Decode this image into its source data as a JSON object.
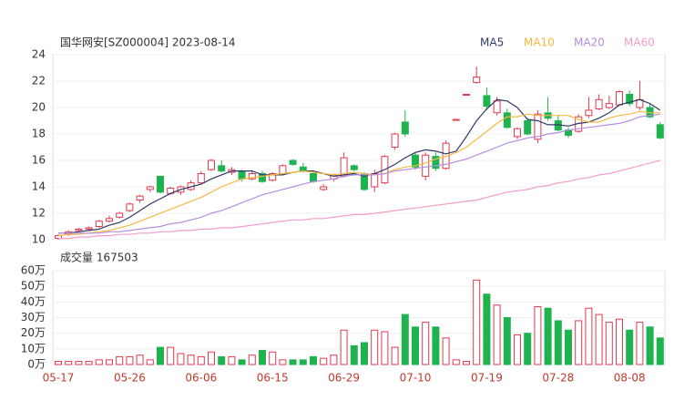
{
  "chart_data": {
    "type": "candlestick",
    "title": "国华网安[SZ000004] 2023-08-14",
    "categories": [
      "05-17",
      null,
      null,
      null,
      null,
      null,
      null,
      "05-26",
      null,
      null,
      null,
      null,
      null,
      null,
      "06-06",
      null,
      null,
      null,
      null,
      null,
      null,
      "06-15",
      null,
      null,
      null,
      null,
      null,
      null,
      "06-29",
      null,
      null,
      null,
      null,
      null,
      null,
      "07-10",
      null,
      null,
      null,
      null,
      null,
      null,
      "07-19",
      null,
      null,
      null,
      null,
      null,
      null,
      "07-28",
      null,
      null,
      null,
      null,
      null,
      null,
      "08-08",
      null,
      null,
      null
    ],
    "open": [
      10.1,
      10.4,
      10.7,
      10.8,
      11.0,
      11.4,
      11.7,
      12.2,
      13.0,
      13.8,
      14.8,
      13.5,
      13.6,
      13.8,
      14.3,
      15.3,
      15.6,
      15.1,
      15.2,
      14.6,
      15.0,
      14.5,
      15.0,
      16.0,
      15.5,
      15.0,
      13.8,
      14.6,
      14.8,
      15.6,
      15.0,
      14.0,
      14.3,
      17.0,
      18.9,
      16.4,
      14.8,
      16.3,
      15.4,
      19.1,
      21.0,
      21.9,
      20.9,
      19.6,
      19.6,
      17.8,
      19.0,
      17.6,
      19.6,
      19.0,
      18.3,
      18.2,
      19.4,
      19.9,
      20.0,
      20.2,
      21.0,
      20.0,
      20.0,
      18.7
    ],
    "high": [
      10.4,
      10.7,
      10.9,
      11.0,
      11.5,
      11.8,
      12.1,
      12.8,
      13.4,
      14.1,
      14.8,
      14.0,
      14.1,
      14.5,
      15.2,
      16.1,
      16.0,
      15.5,
      15.3,
      15.2,
      15.2,
      15.1,
      15.7,
      16.1,
      15.8,
      15.1,
      14.2,
      15.0,
      16.6,
      15.7,
      15.1,
      15.3,
      16.4,
      18.1,
      19.8,
      16.6,
      16.6,
      16.6,
      17.5,
      19.1,
      21.0,
      23.1,
      21.5,
      20.8,
      19.9,
      18.5,
      19.2,
      19.8,
      20.8,
      19.4,
      18.5,
      19.5,
      20.8,
      21.0,
      20.9,
      21.3,
      21.3,
      22.0,
      20.3,
      18.9
    ],
    "low": [
      10.0,
      10.3,
      10.6,
      10.7,
      10.9,
      11.3,
      11.6,
      12.1,
      12.8,
      13.6,
      13.5,
      13.4,
      13.4,
      13.7,
      14.2,
      15.2,
      15.1,
      14.9,
      14.4,
      14.5,
      14.3,
      14.4,
      14.9,
      15.6,
      15.1,
      14.3,
      13.7,
      14.4,
      14.7,
      15.2,
      13.7,
      13.6,
      14.2,
      16.8,
      17.8,
      15.3,
      14.5,
      15.2,
      15.3,
      19.1,
      21.0,
      21.8,
      19.8,
      19.4,
      18.4,
      17.6,
      17.9,
      17.3,
      19.0,
      18.2,
      17.7,
      18.1,
      19.2,
      19.8,
      19.9,
      20.1,
      20.1,
      19.8,
      19.2,
      17.6
    ],
    "close": [
      10.3,
      10.6,
      10.8,
      10.9,
      11.4,
      11.6,
      12.0,
      12.7,
      13.3,
      14.0,
      13.6,
      13.9,
      14.0,
      14.3,
      15.0,
      16.0,
      15.2,
      15.3,
      14.6,
      15.0,
      14.4,
      15.0,
      15.6,
      15.7,
      15.2,
      14.4,
      14.0,
      14.9,
      16.2,
      15.3,
      13.8,
      15.0,
      16.3,
      18.0,
      18.0,
      15.5,
      16.4,
      15.4,
      17.3,
      19.1,
      21.0,
      22.3,
      20.1,
      20.5,
      18.5,
      18.4,
      18.0,
      19.5,
      19.2,
      18.3,
      17.9,
      19.3,
      19.8,
      20.6,
      20.3,
      21.2,
      20.3,
      20.6,
      19.3,
      17.7
    ],
    "up_color": "#e03a4f",
    "down_color": "#1eb34f",
    "ylim": [
      10,
      24
    ],
    "yticks": [
      10,
      12,
      14,
      16,
      18,
      20,
      22,
      24
    ],
    "series": [
      {
        "name": "MA5",
        "color": "#2b3a67",
        "values": [
          10.5,
          10.5,
          10.6,
          10.7,
          10.8,
          11.1,
          11.3,
          11.7,
          12.2,
          12.7,
          13.1,
          13.5,
          13.8,
          14.0,
          14.2,
          14.6,
          14.9,
          15.2,
          15.2,
          15.2,
          14.9,
          14.9,
          14.9,
          15.1,
          15.2,
          15.2,
          15.0,
          14.8,
          14.9,
          15.0,
          14.8,
          15.0,
          15.3,
          15.7,
          16.2,
          16.6,
          16.8,
          16.7,
          16.5,
          16.7,
          17.8,
          19.0,
          19.9,
          20.6,
          20.5,
          20.0,
          19.1,
          19.0,
          18.7,
          18.7,
          18.6,
          18.8,
          18.9,
          19.2,
          19.6,
          20.2,
          20.4,
          20.6,
          20.3,
          19.8
        ]
      },
      {
        "name": "MA10",
        "color": "#f5b942",
        "values": [
          10.3,
          10.4,
          10.4,
          10.5,
          10.6,
          10.7,
          10.9,
          11.1,
          11.4,
          11.7,
          12.0,
          12.3,
          12.6,
          12.9,
          13.2,
          13.6,
          14.0,
          14.3,
          14.6,
          14.7,
          14.8,
          14.9,
          15.0,
          15.1,
          15.2,
          15.1,
          15.0,
          14.9,
          15.0,
          15.1,
          15.0,
          14.9,
          15.0,
          15.3,
          15.5,
          15.6,
          15.8,
          16.1,
          16.3,
          16.6,
          17.0,
          17.6,
          18.2,
          18.8,
          19.3,
          19.3,
          19.5,
          19.4,
          19.4,
          19.4,
          19.4,
          19.1,
          18.9,
          18.9,
          19.2,
          19.4,
          19.5,
          19.7,
          19.6,
          19.6
        ]
      },
      {
        "name": "MA20",
        "color": "#b58ee0",
        "values": [
          10.5,
          10.5,
          10.5,
          10.5,
          10.5,
          10.6,
          10.6,
          10.7,
          10.8,
          10.9,
          11.0,
          11.2,
          11.3,
          11.5,
          11.7,
          12.0,
          12.2,
          12.5,
          12.8,
          13.1,
          13.4,
          13.6,
          13.8,
          14.0,
          14.2,
          14.4,
          14.5,
          14.6,
          14.8,
          14.9,
          14.9,
          14.9,
          15.0,
          15.2,
          15.3,
          15.4,
          15.5,
          15.6,
          15.7,
          15.9,
          16.1,
          16.4,
          16.7,
          17.0,
          17.3,
          17.5,
          17.7,
          17.8,
          18.0,
          18.1,
          18.3,
          18.4,
          18.5,
          18.6,
          18.7,
          18.8,
          19.0,
          19.3,
          19.4,
          19.5
        ]
      },
      {
        "name": "MA60",
        "color": "#f29ccb",
        "values": [
          10.1,
          10.1,
          10.2,
          10.2,
          10.3,
          10.3,
          10.4,
          10.4,
          10.5,
          10.5,
          10.6,
          10.6,
          10.7,
          10.7,
          10.8,
          10.8,
          10.9,
          10.9,
          11.0,
          11.1,
          11.2,
          11.3,
          11.4,
          11.5,
          11.5,
          11.6,
          11.6,
          11.7,
          11.8,
          11.9,
          11.9,
          12.0,
          12.1,
          12.2,
          12.3,
          12.4,
          12.5,
          12.6,
          12.7,
          12.8,
          12.9,
          13.0,
          13.2,
          13.4,
          13.6,
          13.7,
          13.8,
          14.0,
          14.1,
          14.3,
          14.4,
          14.6,
          14.7,
          14.9,
          15.0,
          15.2,
          15.4,
          15.6,
          15.8,
          16.0
        ]
      }
    ],
    "volume": {
      "title": "成交量 167503",
      "values": [
        2,
        2,
        2,
        2,
        3,
        3,
        5,
        5,
        6,
        3,
        11,
        11,
        7,
        6,
        5,
        8,
        5,
        5,
        3,
        6,
        9,
        8,
        3,
        3,
        3,
        5,
        4,
        6,
        22,
        12,
        14,
        22,
        21,
        11,
        32,
        24,
        27,
        24,
        17,
        3,
        2,
        54,
        45,
        38,
        30,
        19,
        20,
        37,
        36,
        28,
        22,
        28,
        36,
        32,
        27,
        29,
        22,
        27,
        24,
        17
      ],
      "ylim": [
        0,
        60
      ],
      "yticks": [
        {
          "value": 0,
          "label": "0万"
        },
        {
          "value": 10,
          "label": "10万"
        },
        {
          "value": 20,
          "label": "20万"
        },
        {
          "value": 30,
          "label": "30万"
        },
        {
          "value": 40,
          "label": "40万"
        },
        {
          "value": 50,
          "label": "50万"
        },
        {
          "value": 60,
          "label": "60万"
        }
      ]
    }
  }
}
